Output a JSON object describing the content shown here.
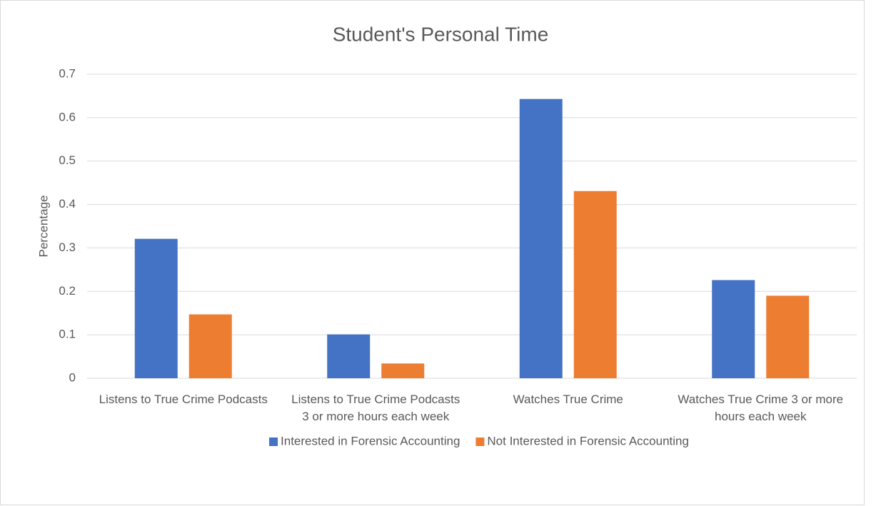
{
  "chart_data": {
    "type": "bar",
    "title": "Student's Personal Time",
    "y_label": "Percentage",
    "categories": [
      "Listens to True Crime Podcasts",
      "Listens to True Crime Podcasts 3 or more hours each week",
      "Watches True Crime",
      "Watches True Crime 3 or more hours each week"
    ],
    "series": [
      {
        "name": "Interested in Forensic Accounting",
        "color": "#4472c4",
        "values": [
          0.321,
          0.101,
          0.643,
          0.226
        ]
      },
      {
        "name": "Not Interested in Forensic Accounting",
        "color": "#ed7d31",
        "values": [
          0.147,
          0.034,
          0.431,
          0.19
        ]
      }
    ],
    "ylim": [
      0,
      0.7
    ],
    "yticks": [
      0,
      0.1,
      0.2,
      0.3,
      0.4,
      0.5,
      0.6,
      0.7
    ],
    "grid": true,
    "legend": "bottom"
  }
}
